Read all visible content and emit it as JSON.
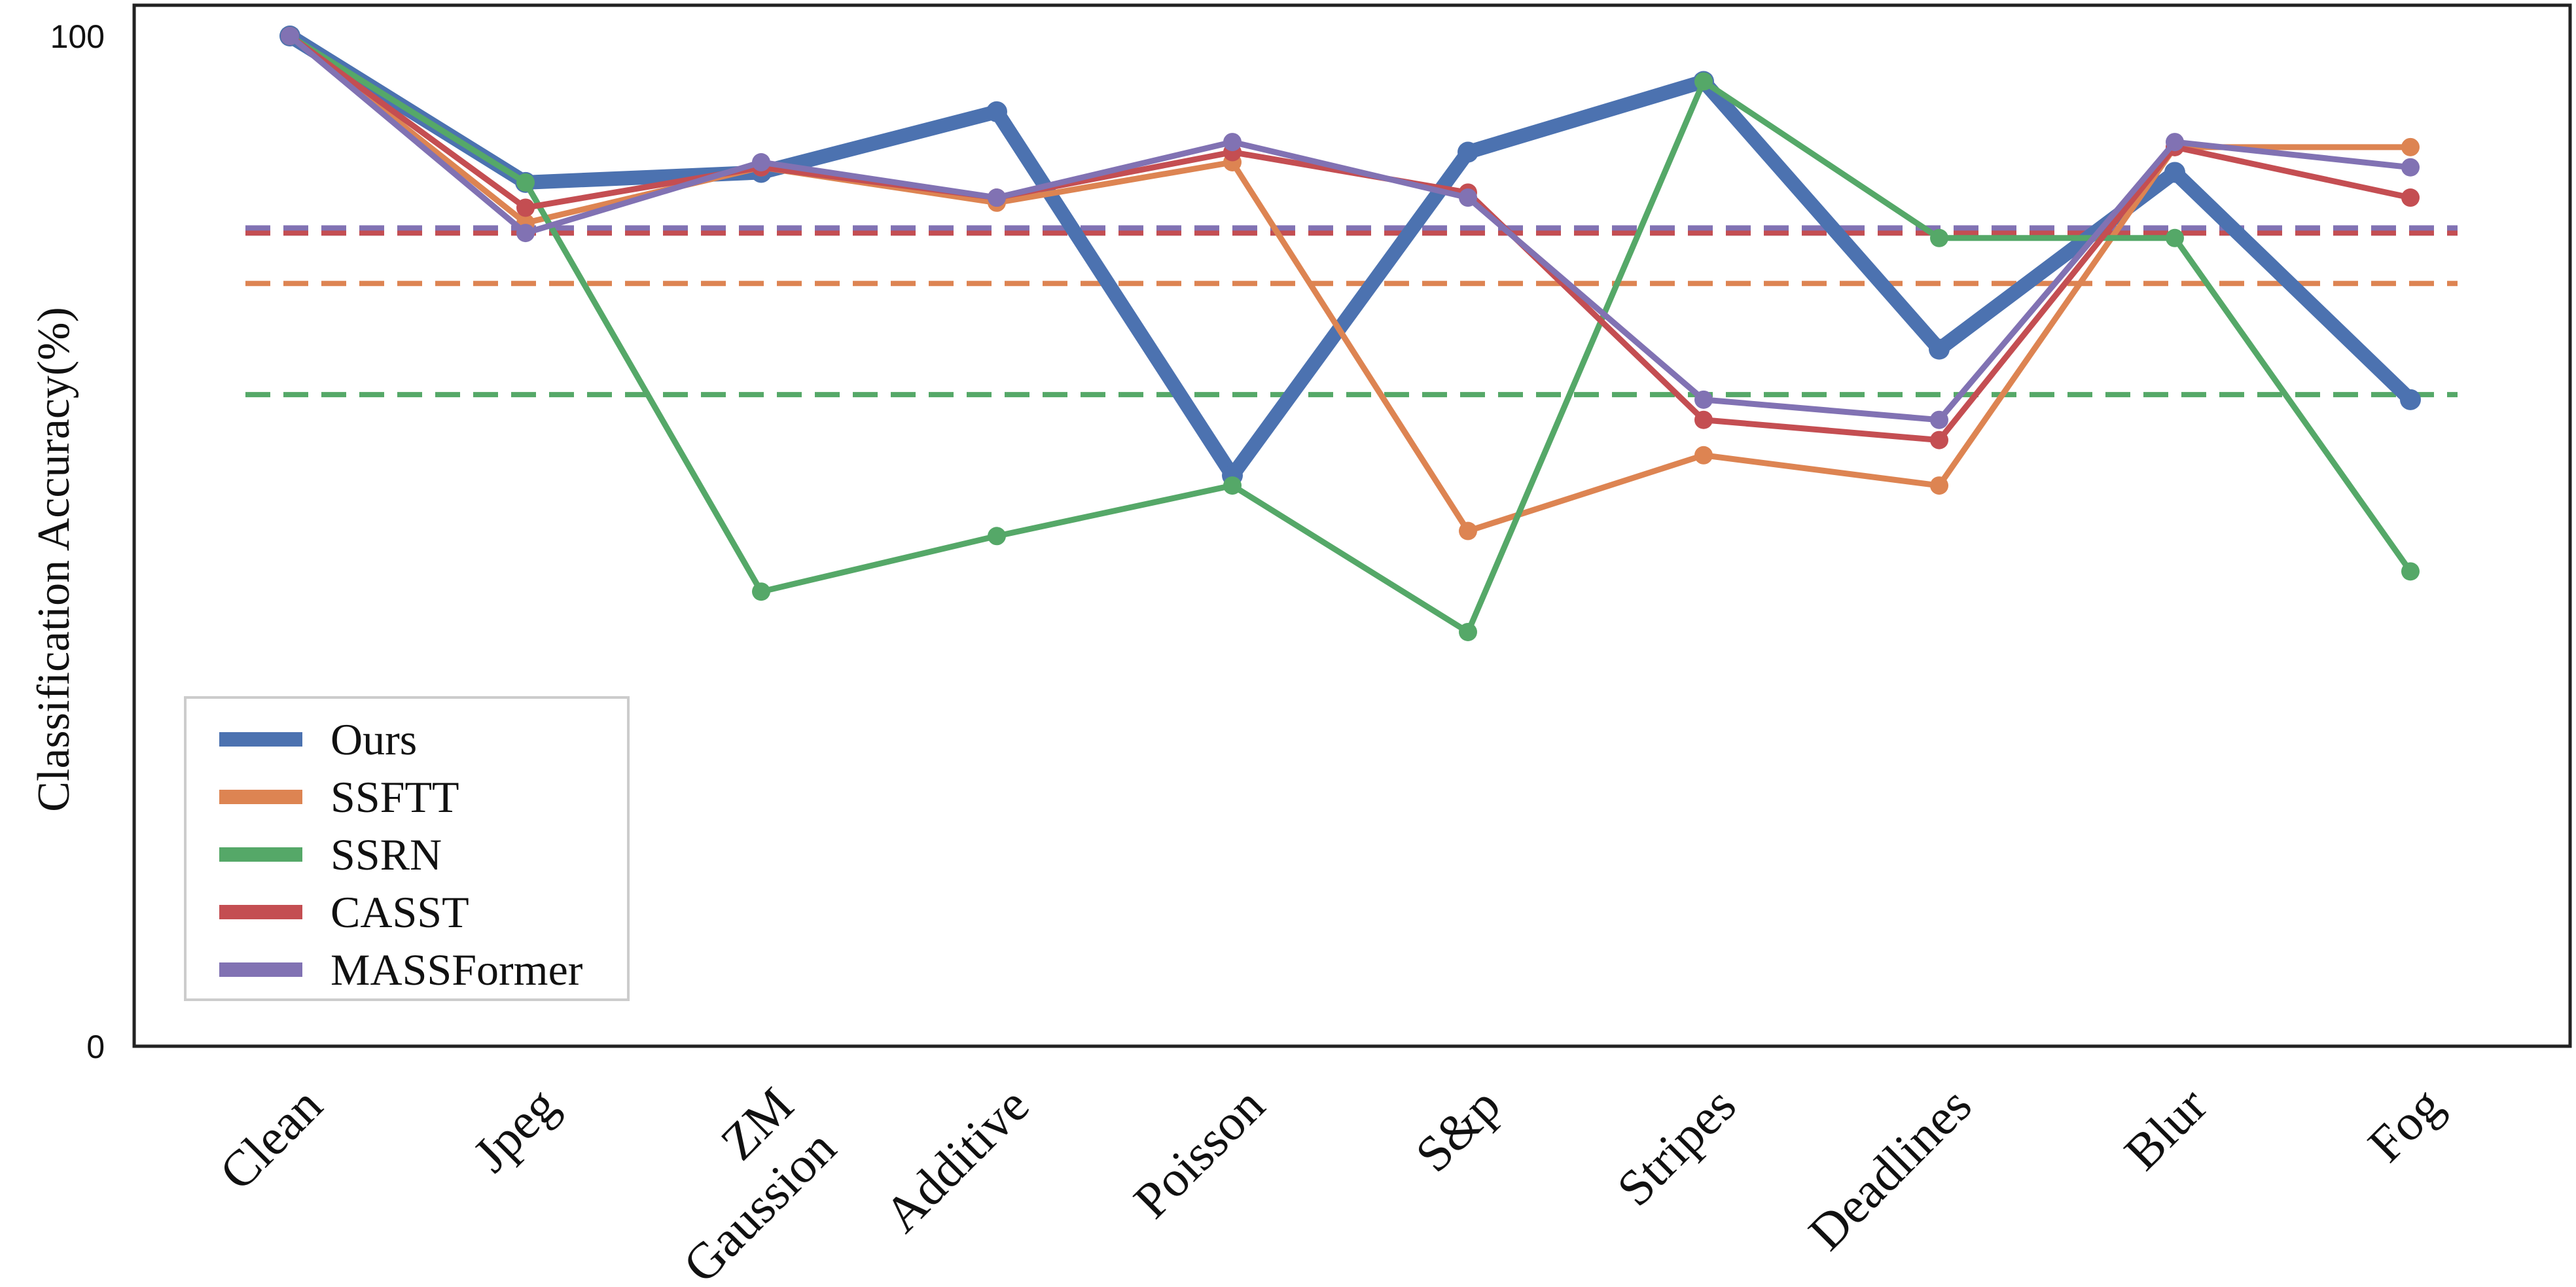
{
  "chart_data": {
    "type": "line",
    "title": "",
    "xlabel": "",
    "ylabel": "Classification Accuracy(%)",
    "ylim": [
      0,
      100
    ],
    "yticks": [
      "0",
      "100"
    ],
    "categories": [
      "Clean",
      "Jpeg",
      "ZM Gaussion",
      "Additive",
      "Poisson",
      "S&p",
      "Stripes",
      "Deadlines",
      "Blur",
      "Fog"
    ],
    "category_lines": [
      [
        "Clean"
      ],
      [
        "Jpeg"
      ],
      [
        "ZM",
        "Gaussion"
      ],
      [
        "Additive"
      ],
      [
        "Poisson"
      ],
      [
        "S&p"
      ],
      [
        "Stripes"
      ],
      [
        "Deadlines"
      ],
      [
        "Blur"
      ],
      [
        "Fog"
      ]
    ],
    "legend_position": "lower-left",
    "grid": false,
    "series": [
      {
        "name": "Ours",
        "color": "#4c72b0",
        "values": [
          100,
          85.5,
          86.5,
          92.5,
          56.5,
          88.5,
          95.5,
          69,
          86.5,
          64
        ],
        "mean": 80.5,
        "bold": true
      },
      {
        "name": "SSFTT",
        "color": "#dd8452",
        "values": [
          100,
          81.5,
          87,
          83.5,
          87.5,
          51,
          58.5,
          55.5,
          89,
          89
        ],
        "mean": 75.5
      },
      {
        "name": "SSRN",
        "color": "#55a868",
        "values": [
          100,
          85.5,
          45,
          50.5,
          55.5,
          41,
          95.5,
          80,
          80,
          47
        ],
        "mean": 64.5
      },
      {
        "name": "CASST",
        "color": "#c44e52",
        "values": [
          100,
          83,
          87,
          84,
          88.5,
          84.5,
          62,
          60,
          89,
          84
        ],
        "mean": 80.5
      },
      {
        "name": "MASSFormer",
        "color": "#8172b3",
        "values": [
          100,
          80.5,
          87.5,
          84,
          89.5,
          84,
          64,
          62,
          89.5,
          87
        ],
        "mean": 81
      }
    ]
  }
}
